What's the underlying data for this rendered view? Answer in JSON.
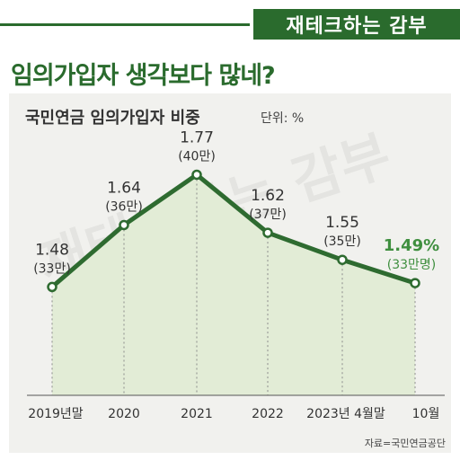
{
  "brand": "재테크하는 감부",
  "headline": "임의가입자 생각보다 많네?",
  "watermark": "재테크하는 감부",
  "chart_data": {
    "type": "area",
    "title": "국민연금 임의가입자 비중",
    "unit": "단위: %",
    "source": "자료=국민연금공단",
    "categories": [
      "2019년말",
      "2020",
      "2021",
      "2022",
      "2023년 4월말",
      "10월"
    ],
    "values": [
      1.48,
      1.64,
      1.77,
      1.62,
      1.55,
      1.49
    ],
    "value_labels": [
      "1.48",
      "1.64",
      "1.77",
      "1.62",
      "1.55",
      "1.49%"
    ],
    "counts": [
      "(33만)",
      "(36만)",
      "(40만)",
      "(37만)",
      "(35만)",
      "(33만명)"
    ],
    "ylim": [
      1.2,
      1.85
    ],
    "grid": false,
    "colors": {
      "line": "#2e6b30",
      "fill": "#e2ecd6",
      "highlight": "#3f8f3f",
      "point_fill": "#ffffff"
    }
  }
}
